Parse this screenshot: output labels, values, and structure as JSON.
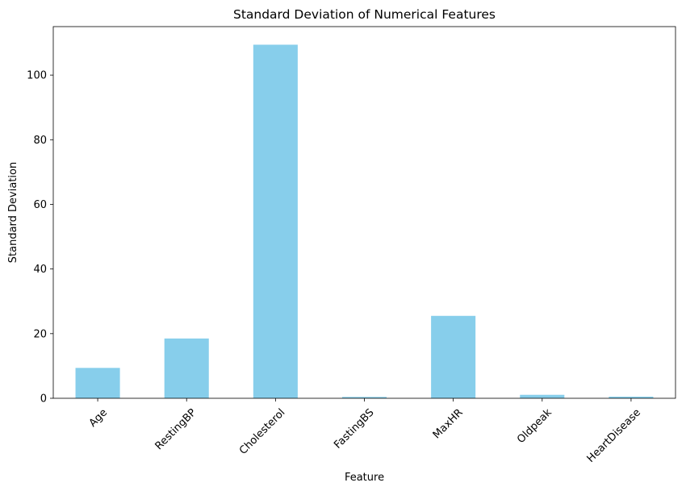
{
  "chart_data": {
    "type": "bar",
    "title": "Standard Deviation of Numerical Features",
    "xlabel": "Feature",
    "ylabel": "Standard Deviation",
    "categories": [
      "Age",
      "RestingBP",
      "Cholesterol",
      "FastingBS",
      "MaxHR",
      "Oldpeak",
      "HeartDisease"
    ],
    "values": [
      9.4,
      18.5,
      109.4,
      0.42,
      25.5,
      1.07,
      0.5
    ],
    "ylim": [
      0,
      115
    ],
    "yticks": [
      0,
      20,
      40,
      60,
      80,
      100
    ],
    "xtick_rotation": 45,
    "bar_color": "#87ceeb",
    "grid": false,
    "legend": "none"
  }
}
